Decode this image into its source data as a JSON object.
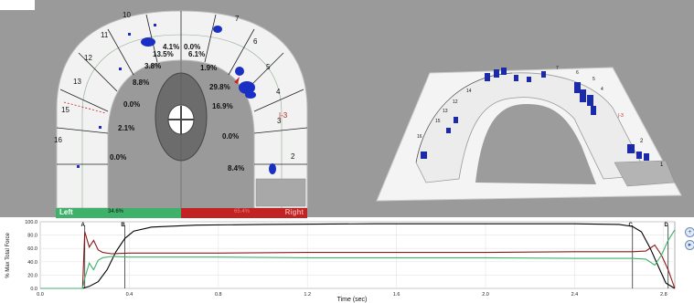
{
  "occlusal_map": {
    "tooth_numbers": [
      "10",
      "11",
      "12",
      "13",
      "15",
      "16",
      "7",
      "6",
      "5",
      "4",
      "3",
      "2"
    ],
    "percentages": [
      "4.1%",
      "0.0%",
      "13.5%",
      "6.1%",
      "3.8%",
      "1.9%",
      "8.8%",
      "29.8%",
      "0.0%",
      "16.9%",
      "2.1%",
      "0.0%",
      "0.0%",
      "8.4%"
    ],
    "markers": [
      "|-3"
    ],
    "balance": {
      "left_label": "Left",
      "left_value": "34.6%",
      "right_label": "Right",
      "right_value": "65.4%"
    }
  },
  "view_3d": {
    "tooth_numbers": [
      "14",
      "12",
      "13",
      "15",
      "16",
      "2",
      "1",
      "4",
      "5",
      "6",
      "7"
    ],
    "marker": "|-3"
  },
  "colors": {
    "background": "#9a9a9a",
    "arch": "#f2f2f2",
    "left_bar": "#3eb26a",
    "right_bar": "#c22222",
    "contact": "#1a2fc4",
    "total_line": "#000000",
    "left_line": "#3eb26a",
    "right_line": "#8b1a1a"
  },
  "controls": {
    "zoom_in_icon": "plus-icon",
    "play_icon": "play-icon"
  },
  "chart_data": {
    "type": "line",
    "xlabel": "Time (sec)",
    "ylabel": "% Max Total Force",
    "xlim": [
      0,
      2.85
    ],
    "ylim": [
      0,
      100
    ],
    "x_ticks": [
      "0.0",
      "0.4",
      "0.8",
      "1.2",
      "1.6",
      "2.0",
      "2.4",
      "2.8"
    ],
    "y_ticks": [
      "0.0",
      "20.0",
      "40.0",
      "60.0",
      "80.0",
      "100.0"
    ],
    "grid": true,
    "markers": [
      {
        "label": "A",
        "x": 0.2
      },
      {
        "label": "B",
        "x": 0.38
      },
      {
        "label": "C",
        "x": 2.66
      },
      {
        "label": "D",
        "x": 2.82
      }
    ],
    "series": [
      {
        "color": "#000000",
        "points": [
          [
            0,
            0
          ],
          [
            0.19,
            0
          ],
          [
            0.22,
            3
          ],
          [
            0.26,
            10
          ],
          [
            0.3,
            28
          ],
          [
            0.34,
            55
          ],
          [
            0.38,
            75
          ],
          [
            0.42,
            86
          ],
          [
            0.5,
            92
          ],
          [
            0.7,
            95
          ],
          [
            1.0,
            96
          ],
          [
            1.5,
            97
          ],
          [
            2.0,
            97
          ],
          [
            2.4,
            97
          ],
          [
            2.6,
            96
          ],
          [
            2.66,
            93
          ],
          [
            2.7,
            85
          ],
          [
            2.74,
            60
          ],
          [
            2.78,
            30
          ],
          [
            2.81,
            8
          ],
          [
            2.85,
            0
          ]
        ]
      },
      {
        "color": "#8b1a1a",
        "points": [
          [
            0,
            0
          ],
          [
            0.19,
            0
          ],
          [
            0.2,
            85
          ],
          [
            0.22,
            62
          ],
          [
            0.24,
            72
          ],
          [
            0.26,
            58
          ],
          [
            0.28,
            54
          ],
          [
            0.32,
            52
          ],
          [
            0.4,
            53
          ],
          [
            0.8,
            53
          ],
          [
            1.2,
            54
          ],
          [
            1.6,
            54
          ],
          [
            2.0,
            54
          ],
          [
            2.4,
            55
          ],
          [
            2.66,
            55
          ],
          [
            2.72,
            56
          ],
          [
            2.76,
            65
          ],
          [
            2.79,
            50
          ],
          [
            2.82,
            28
          ],
          [
            2.85,
            0
          ]
        ]
      },
      {
        "color": "#3eb26a",
        "points": [
          [
            0,
            0
          ],
          [
            0.19,
            0
          ],
          [
            0.2,
            15
          ],
          [
            0.22,
            38
          ],
          [
            0.24,
            28
          ],
          [
            0.26,
            42
          ],
          [
            0.28,
            46
          ],
          [
            0.32,
            48
          ],
          [
            0.4,
            47
          ],
          [
            0.8,
            47
          ],
          [
            1.2,
            46
          ],
          [
            1.6,
            46
          ],
          [
            2.0,
            46
          ],
          [
            2.4,
            45
          ],
          [
            2.66,
            45
          ],
          [
            2.72,
            44
          ],
          [
            2.76,
            35
          ],
          [
            2.79,
            50
          ],
          [
            2.82,
            72
          ],
          [
            2.85,
            88
          ]
        ]
      }
    ]
  }
}
